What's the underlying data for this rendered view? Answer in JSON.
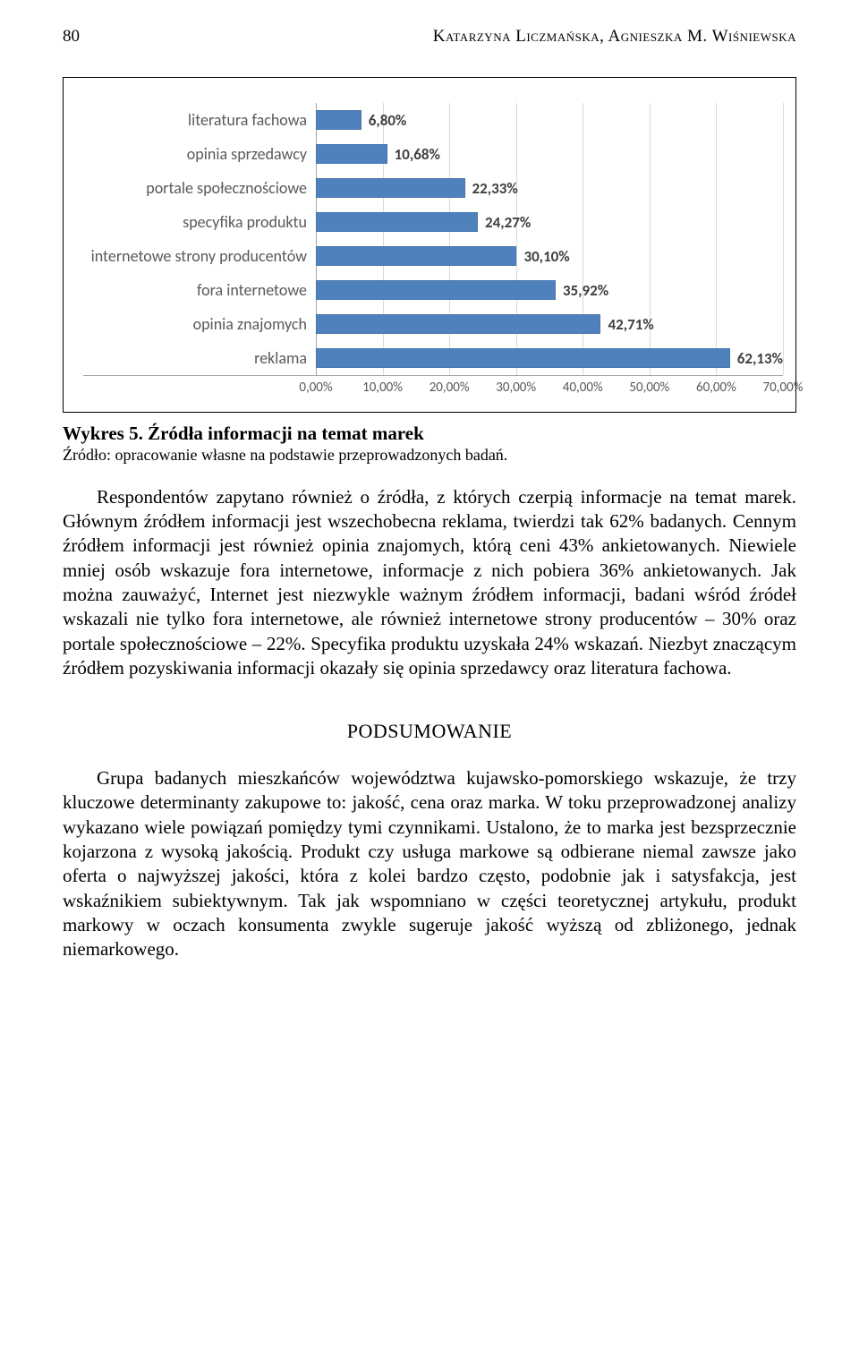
{
  "page": {
    "number": "80",
    "authors": "Katarzyna Liczmańska, Agnieszka M. Wiśniewska"
  },
  "chart": {
    "type": "bar",
    "border_color": "#000000",
    "axis_color": "#a6a6a6",
    "grid_color": "#d9d9d9",
    "bar_color": "#4f81bd",
    "label_fontsize": 18,
    "datalabel_fontsize": 17,
    "xlim": [
      0,
      70
    ],
    "xtick_step": 10,
    "xtick_labels": [
      "0,00%",
      "10,00%",
      "20,00%",
      "30,00%",
      "40,00%",
      "50,00%",
      "60,00%",
      "70,00%"
    ],
    "rows": [
      {
        "label": "literatura fachowa",
        "value": 6.8,
        "value_label": "6,80%"
      },
      {
        "label": "opinia sprzedawcy",
        "value": 10.68,
        "value_label": "10,68%"
      },
      {
        "label": "portale społecznościowe",
        "value": 22.33,
        "value_label": "22,33%"
      },
      {
        "label": "specyfika produktu",
        "value": 24.27,
        "value_label": "24,27%"
      },
      {
        "label": "internetowe strony producentów",
        "value": 30.1,
        "value_label": "30,10%"
      },
      {
        "label": "fora internetowe",
        "value": 35.92,
        "value_label": "35,92%"
      },
      {
        "label": "opinia znajomych",
        "value": 42.71,
        "value_label": "42,71%"
      },
      {
        "label": "reklama",
        "value": 62.13,
        "value_label": "62,13%"
      }
    ]
  },
  "caption": {
    "title_bold": "Wykres 5. Źródła informacji na temat marek",
    "source": "Źródło: opracowanie własne na podstawie przeprowadzonych badań."
  },
  "paragraph1": "Respondentów zapytano również o źródła, z których czerpią informacje na temat marek. Głównym źródłem informacji jest wszechobecna reklama, twierdzi tak 62% badanych. Cennym źródłem informacji jest również opinia znajomych, którą ceni 43% ankietowanych. Niewiele mniej osób wskazuje fora internetowe, informacje z nich pobiera 36% ankietowanych. Jak można zauważyć, Internet jest niezwykle ważnym źródłem informacji, badani wśród źródeł wskazali nie tylko fora internetowe, ale również internetowe strony producentów – 30% oraz portale społecznościowe – 22%. Specyfika produktu uzyskała 24% wskazań. Niezbyt znaczącym źródłem pozyskiwania informacji okazały się opinia sprzedawcy oraz literatura fachowa.",
  "section_title": "PODSUMOWANIE",
  "paragraph2": "Grupa badanych mieszkańców województwa kujawsko-pomorskiego wskazuje, że trzy kluczowe determinanty zakupowe to: jakość, cena oraz marka. W toku przeprowadzonej analizy wykazano wiele powiązań pomiędzy tymi czynnikami. Ustalono, że to marka jest bezsprzecznie kojarzona z wysoką jakością. Produkt czy usługa markowe są odbierane niemal zawsze jako oferta o najwyższej jakości, która z kolei bardzo często, podobnie jak i satysfakcja, jest wskaźnikiem subiektywnym. Tak jak wspomniano w części teoretycznej artykułu, produkt markowy w oczach konsumenta zwykle sugeruje jakość wyższą od zbliżonego, jednak niemarkowego."
}
